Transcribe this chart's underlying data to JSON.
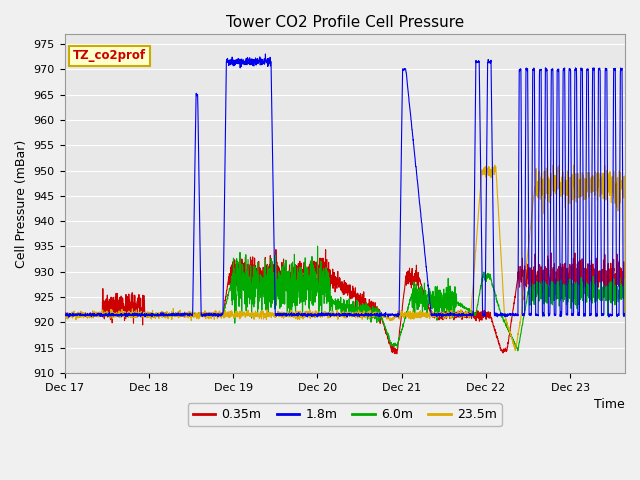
{
  "title": "Tower CO2 Profile Cell Pressure",
  "xlabel": "Time",
  "ylabel": "Cell Pressure (mBar)",
  "ylim": [
    910,
    977
  ],
  "yticks": [
    910,
    915,
    920,
    925,
    930,
    935,
    940,
    945,
    950,
    955,
    960,
    965,
    970,
    975
  ],
  "xlim_start": 0,
  "xlim_end": 6.65,
  "xtick_positions": [
    0,
    1,
    2,
    3,
    4,
    5,
    6
  ],
  "xtick_labels": [
    "Dec 17",
    "Dec 18",
    "Dec 19",
    "Dec 20",
    "Dec 21",
    "Dec 22",
    "Dec 23"
  ],
  "legend_label": "TZ_co2prof",
  "series_labels": [
    "0.35m",
    "1.8m",
    "6.0m",
    "23.5m"
  ],
  "series_colors": [
    "#cc0000",
    "#0000ee",
    "#00aa00",
    "#ddaa00"
  ],
  "fig_bg_color": "#f0f0f0",
  "plot_bg_color": "#e8e8e8",
  "grid_color": "#ffffff",
  "legend_box_facecolor": "#ffffcc",
  "legend_box_edgecolor": "#ccaa00",
  "title_fontsize": 11,
  "axis_label_fontsize": 9,
  "tick_fontsize": 8
}
